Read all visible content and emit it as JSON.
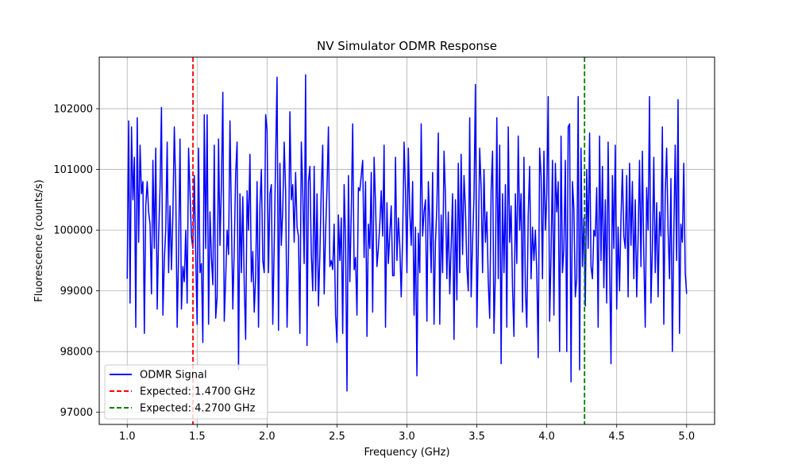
{
  "chart_data": {
    "type": "line",
    "title": "NV Simulator ODMR Response",
    "xlabel": "Frequency (GHz)",
    "ylabel": "Fluorescence (counts/s)",
    "xlim": [
      0.8,
      5.2
    ],
    "ylim": [
      96800,
      102850
    ],
    "xticks": [
      1.0,
      1.5,
      2.0,
      2.5,
      3.0,
      3.5,
      4.0,
      4.5,
      5.0
    ],
    "xtick_labels": [
      "1.0",
      "1.5",
      "2.0",
      "2.5",
      "3.0",
      "3.5",
      "4.0",
      "4.5",
      "5.0"
    ],
    "yticks": [
      97000,
      98000,
      99000,
      100000,
      101000,
      102000
    ],
    "ytick_labels": [
      "97000",
      "98000",
      "99000",
      "100000",
      "101000",
      "102000"
    ],
    "grid": true,
    "legend_position": "lower-left",
    "series": [
      {
        "name": "ODMR Signal",
        "color": "#0000ff",
        "style": "solid",
        "x_range": [
          1.0,
          5.0
        ],
        "note_points": 400,
        "y": [
          99200,
          101800,
          98800,
          101700,
          100500,
          101200,
          98400,
          101850,
          99800,
          101400,
          100600,
          100800,
          98300,
          100400,
          100800,
          100300,
          100100,
          98950,
          101150,
          99700,
          101350,
          98700,
          99900,
          100700,
          102020,
          98600,
          99500,
          100000,
          101450,
          99300,
          100400,
          99350,
          100250,
          101700,
          100700,
          98400,
          99600,
          101500,
          98700,
          99400,
          99150,
          100000,
          98800,
          101350,
          100600,
          99900,
          99700,
          100900,
          99600,
          98450,
          101350,
          99300,
          99450,
          98150,
          101900,
          99700,
          101900,
          98450,
          100300,
          99550,
          99100,
          101400,
          98550,
          98900,
          101500,
          99750,
          100750,
          102270,
          98500,
          99200,
          100000,
          99600,
          101800,
          100200,
          98700,
          99700,
          100950,
          101450,
          97700,
          100600,
          99300,
          100550,
          99100,
          98200,
          100650,
          100000,
          101250,
          99150,
          99650,
          98650,
          99250,
          100800,
          98400,
          100400,
          101000,
          99500,
          99300,
          101900,
          101650,
          99300,
          100600,
          100750,
          98450,
          99750,
          101200,
          102520,
          98350,
          101100,
          99750,
          100350,
          101450,
          100650,
          98400,
          99500,
          101950,
          100500,
          100750,
          99800,
          100950,
          100050,
          99900,
          98300,
          101450,
          100650,
          99450,
          102560,
          98100,
          100800,
          101050,
          99600,
          99000,
          101050,
          99000,
          100600,
          98750,
          99600,
          100700,
          101400,
          98950,
          99950,
          100700,
          101700,
          99400,
          99500,
          99350,
          100100,
          98600,
          98150,
          100250,
          99500,
          100200,
          98300,
          100750,
          99800,
          97350,
          100900,
          99150,
          100300,
          101750,
          99350,
          99550,
          98600,
          100700,
          100650,
          100900,
          101150,
          99550,
          100800,
          98250,
          100100,
          99700,
          100950,
          98650,
          101200,
          100450,
          99400,
          99700,
          100100,
          100650,
          99900,
          101400,
          98400,
          100450,
          99450,
          99950,
          100400,
          99250,
          99250,
          101200,
          99500,
          100200,
          99750,
          98900,
          99900,
          101450,
          100650,
          99300,
          101350,
          100300,
          99750,
          100800,
          98600,
          100050,
          97600,
          99950,
          99300,
          101750,
          99900,
          100300,
          100500,
          98500,
          100800,
          100150,
          99300,
          100950,
          98450,
          99800,
          100400,
          101600,
          98450,
          100250,
          99300,
          101300,
          100550,
          99200,
          100300,
          98950,
          99750,
          100600,
          98200,
          100500,
          98850,
          101100,
          99300,
          101250,
          99600,
          100900,
          100350,
          99400,
          99000,
          101850,
          98900,
          99800,
          100550,
          102400,
          98400,
          99750,
          101350,
          100700,
          99300,
          101000,
          99800,
          100300,
          99150,
          98550,
          100650,
          101300,
          98300,
          99300,
          101850,
          99200,
          101400,
          97800,
          100600,
          99300,
          100750,
          98400,
          101700,
          99800,
          100400,
          99050,
          98250,
          100600,
          99450,
          101550,
          100000,
          100600,
          98650,
          101200,
          99050,
          98400,
          100250,
          101050,
          99200,
          100050,
          99500,
          100000,
          99300,
          97900,
          101350,
          100900,
          99200,
          101300,
          100000,
          100600,
          102200,
          98500,
          99600,
          101150,
          98600,
          101100,
          100300,
          100800,
          98000,
          101550,
          99300,
          99700,
          101150,
          98000,
          101700,
          101750,
          97500,
          100800,
          100350,
          98900,
          99200,
          102200,
          97700,
          101350,
          99400,
          100200,
          98750,
          101000,
          99700,
          101600,
          99400,
          99200,
          100000,
          99900,
          100700,
          98400,
          101550,
          99500,
          101050,
          99050,
          100500,
          98800,
          101450,
          99500,
          97800,
          100900,
          99700,
          101400,
          98700,
          100050,
          99000,
          100200,
          101000,
          99900,
          99700,
          100900,
          98900,
          101100,
          99750,
          100800,
          99200,
          100500,
          98900,
          99850,
          101150,
          99400,
          101300,
          99600,
          98400,
          100700,
          100000,
          102200,
          98800,
          99700,
          101200,
          99300,
          100450,
          98900,
          100300,
          99900,
          101700,
          98450,
          100600,
          101350,
          100000,
          99200,
          100850,
          98000,
          99900,
          101400,
          99500,
          102150,
          98300,
          100100,
          99800,
          101100,
          99300,
          98950
        ]
      },
      {
        "name": "Expected: 1.4700 GHz",
        "color": "#ff0000",
        "style": "dashed",
        "vline_x": 1.47
      },
      {
        "name": "Expected: 4.2700 GHz",
        "color": "#008000",
        "style": "dashed",
        "vline_x": 4.27
      }
    ]
  }
}
